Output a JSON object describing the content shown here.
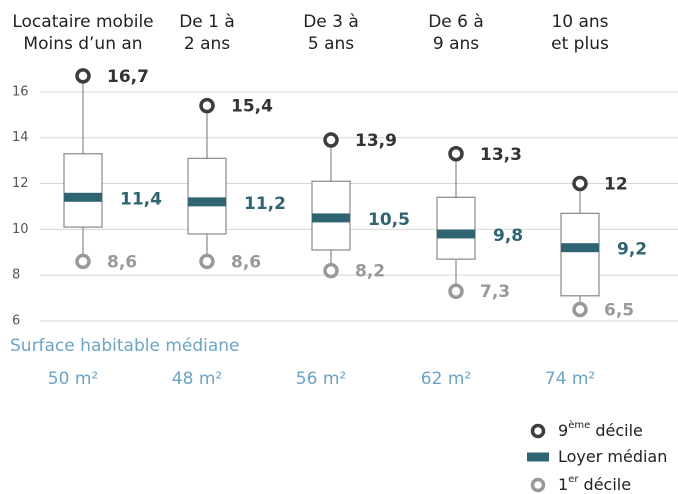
{
  "chart_data": {
    "type": "box",
    "categories": [
      [
        "Locataire mobile",
        "Moins d’un an"
      ],
      [
        "De 1 à",
        "2 ans"
      ],
      [
        "De 3 à",
        "5 ans"
      ],
      [
        "De 6 à",
        "9 ans"
      ],
      [
        "10 ans",
        "et plus"
      ]
    ],
    "series": [
      {
        "name": {
          "main": "9",
          "sup": "ème",
          "rest": " décile"
        },
        "color": "#3d3d3d",
        "label_color": "#333333",
        "values": [
          16.7,
          15.4,
          13.9,
          13.3,
          12
        ],
        "value_labels": [
          "16,7",
          "15,4",
          "13,9",
          "13,3",
          "12"
        ]
      },
      {
        "name": {
          "main": "Loyer médian"
        },
        "color": "#2f6472",
        "label_color": "#2f6472",
        "values": [
          11.4,
          11.2,
          10.5,
          9.8,
          9.2
        ],
        "value_labels": [
          "11,4",
          "11,2",
          "10,5",
          "9,8",
          "9,2"
        ]
      },
      {
        "name": {
          "main": "1",
          "sup": "er",
          "rest": " décile"
        },
        "color": "#999999",
        "label_color": "#999999",
        "values": [
          8.6,
          8.6,
          8.2,
          7.3,
          6.5
        ],
        "value_labels": [
          "8,6",
          "8,6",
          "8,2",
          "7,3",
          "6,5"
        ]
      }
    ],
    "q1": [
      10.1,
      9.8,
      9.1,
      8.7,
      7.1
    ],
    "q3": [
      13.3,
      13.1,
      12.1,
      11.4,
      10.7
    ],
    "ylim": [
      6,
      17
    ],
    "yticks": [
      6,
      8,
      10,
      12,
      14,
      16
    ],
    "grid": true,
    "surface_title": "Surface habitable médiane",
    "surface_values": [
      "50 m²",
      "48 m²",
      "56 m²",
      "62 m²",
      "74 m²"
    ]
  }
}
